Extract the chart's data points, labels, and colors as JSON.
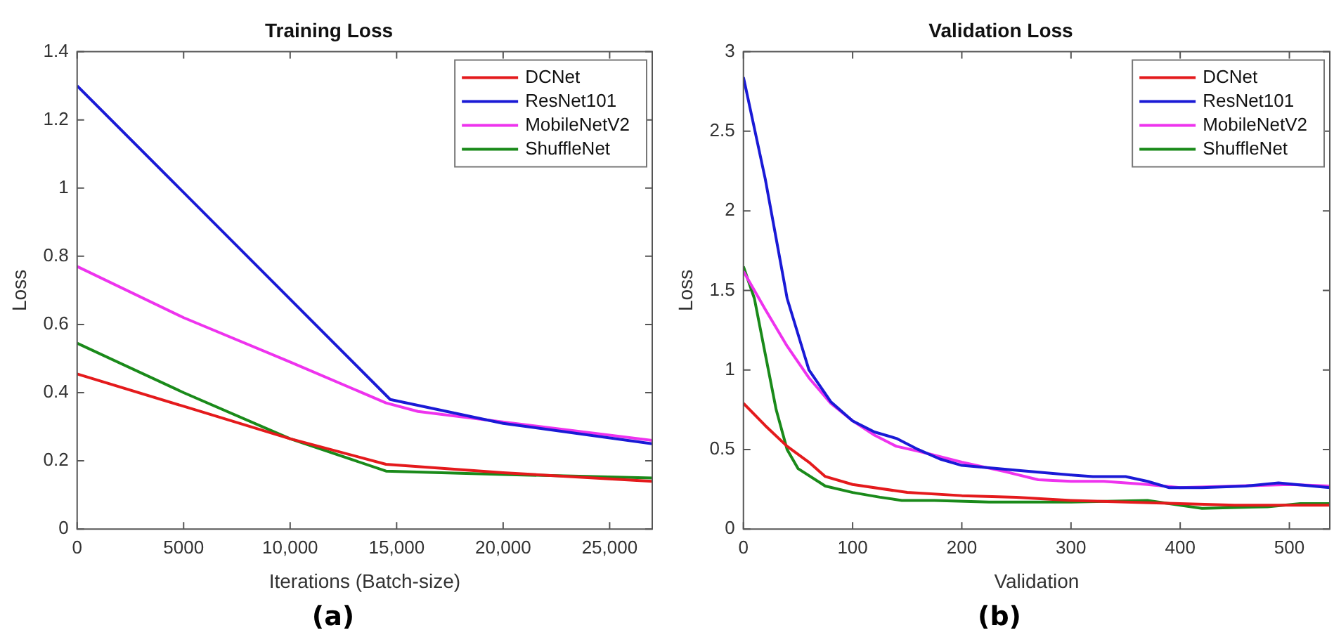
{
  "chart_data": [
    {
      "type": "line",
      "title": "Training Loss",
      "xlabel": "Iterations (Batch-size)",
      "ylabel": "Loss",
      "annotations": [
        "(a)"
      ],
      "legend": "top right",
      "grid": false,
      "marker": "none",
      "line_style": "solid",
      "xlim": [
        0,
        27000
      ],
      "xticks": [
        0,
        5000,
        {
          "value": 10000,
          "label": "10,000"
        },
        {
          "value": 15000,
          "label": "15,000"
        },
        {
          "value": 20000,
          "label": "20,000"
        },
        {
          "value": 25000,
          "label": "25,000"
        }
      ],
      "ylim": [
        0,
        1.4
      ],
      "yticks": [
        0,
        0.2,
        0.4,
        0.6,
        0.8,
        1,
        1.2,
        1.4
      ],
      "series": [
        {
          "name": "DCNet",
          "color": "#e41a1c",
          "x": [
            0,
            5000,
            10000,
            14500,
            20000,
            27000
          ],
          "values": [
            0.455,
            0.36,
            0.265,
            0.19,
            0.165,
            0.14
          ]
        },
        {
          "name": "ResNet101",
          "color": "#1a1ad6",
          "x": [
            0,
            14700,
            20000,
            27000
          ],
          "values": [
            1.3,
            0.38,
            0.31,
            0.25
          ]
        },
        {
          "name": "MobileNetV2",
          "color": "#ee33ee",
          "x": [
            0,
            5000,
            10000,
            14500,
            16000,
            27000
          ],
          "values": [
            0.77,
            0.62,
            0.49,
            0.37,
            0.345,
            0.26
          ]
        },
        {
          "name": "ShuffleNet",
          "color": "#1a8a1a",
          "x": [
            0,
            5000,
            10000,
            14500,
            20000,
            27000
          ],
          "values": [
            0.545,
            0.4,
            0.265,
            0.17,
            0.16,
            0.15
          ]
        }
      ]
    },
    {
      "type": "line",
      "title": "Validation Loss",
      "xlabel": "Validation",
      "ylabel": "Loss",
      "annotations": [
        "(b)"
      ],
      "legend": "top right",
      "grid": false,
      "marker": "none",
      "line_style": "solid",
      "xlim": [
        0,
        537
      ],
      "xticks": [
        0,
        100,
        200,
        300,
        400,
        500
      ],
      "ylim": [
        0,
        3
      ],
      "yticks": [
        0,
        0.5,
        1,
        1.5,
        2,
        2.5,
        3
      ],
      "series": [
        {
          "name": "DCNet",
          "color": "#e41a1c",
          "x": [
            0,
            20,
            40,
            60,
            75,
            100,
            150,
            200,
            250,
            300,
            350,
            400,
            450,
            537
          ],
          "values": [
            0.79,
            0.65,
            0.52,
            0.42,
            0.33,
            0.28,
            0.23,
            0.21,
            0.2,
            0.18,
            0.17,
            0.16,
            0.15,
            0.15
          ]
        },
        {
          "name": "ResNet101",
          "color": "#1a1ad6",
          "x": [
            0,
            20,
            40,
            60,
            80,
            100,
            120,
            140,
            160,
            180,
            200,
            250,
            300,
            320,
            350,
            370,
            390,
            420,
            460,
            490,
            537
          ],
          "values": [
            2.84,
            2.2,
            1.45,
            1.0,
            0.8,
            0.68,
            0.61,
            0.57,
            0.5,
            0.44,
            0.4,
            0.37,
            0.34,
            0.33,
            0.33,
            0.3,
            0.26,
            0.26,
            0.27,
            0.29,
            0.26
          ]
        },
        {
          "name": "MobileNetV2",
          "color": "#ee33ee",
          "x": [
            0,
            20,
            40,
            60,
            80,
            100,
            120,
            140,
            160,
            200,
            240,
            270,
            300,
            330,
            370,
            400,
            450,
            500,
            537
          ],
          "values": [
            1.62,
            1.38,
            1.15,
            0.95,
            0.79,
            0.68,
            0.59,
            0.52,
            0.49,
            0.42,
            0.36,
            0.31,
            0.3,
            0.3,
            0.28,
            0.26,
            0.27,
            0.28,
            0.27
          ]
        },
        {
          "name": "ShuffleNet",
          "color": "#1a8a1a",
          "x": [
            0,
            10,
            20,
            30,
            40,
            50,
            75,
            100,
            125,
            145,
            175,
            225,
            300,
            370,
            400,
            420,
            480,
            510,
            537
          ],
          "values": [
            1.65,
            1.45,
            1.1,
            0.75,
            0.5,
            0.38,
            0.27,
            0.23,
            0.2,
            0.18,
            0.18,
            0.17,
            0.17,
            0.18,
            0.15,
            0.13,
            0.14,
            0.16,
            0.16
          ]
        }
      ]
    }
  ]
}
